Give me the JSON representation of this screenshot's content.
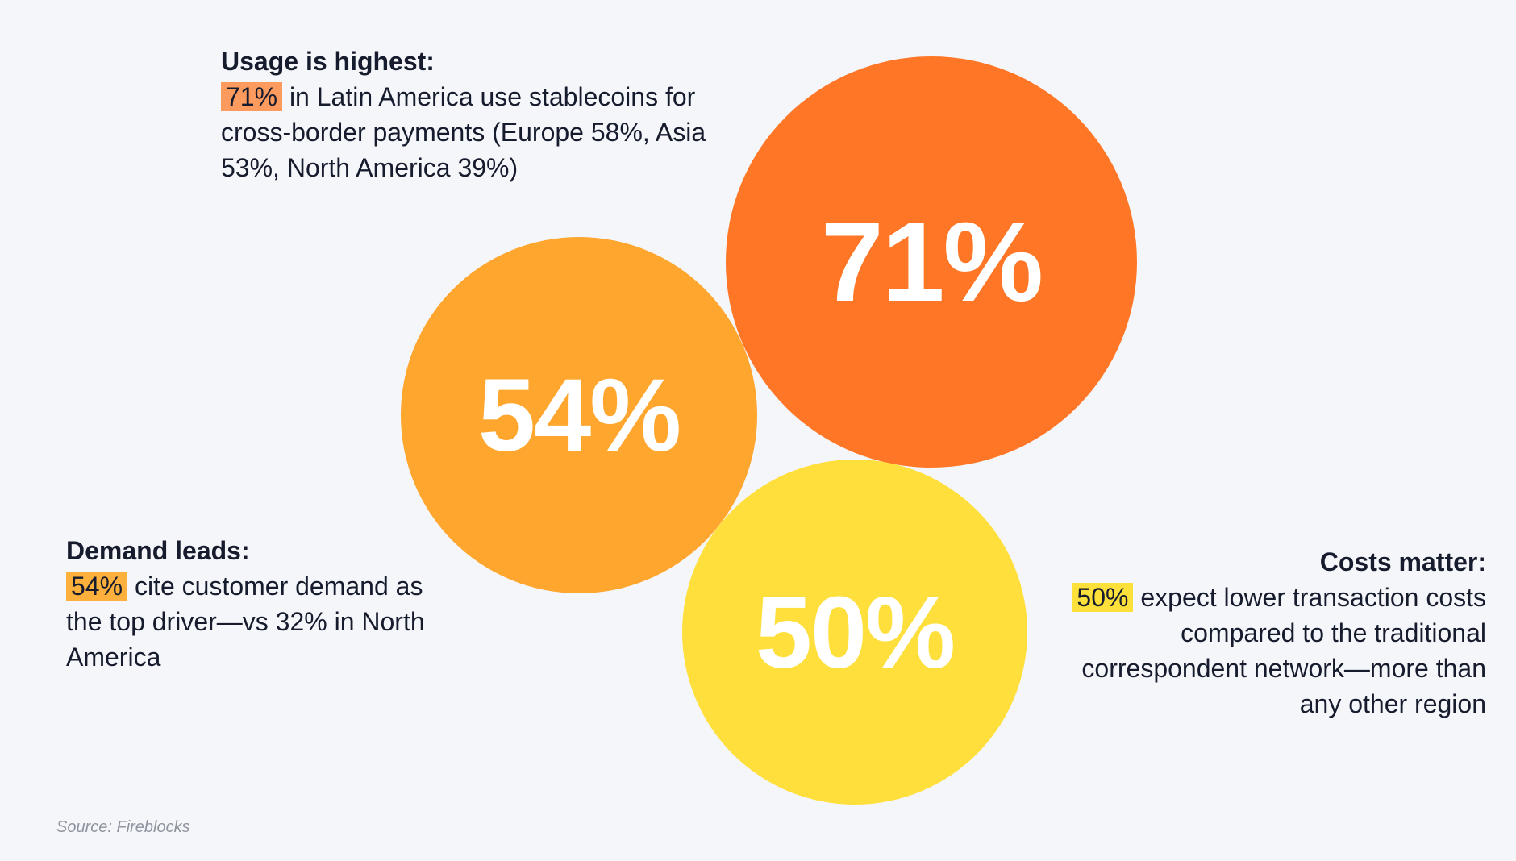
{
  "chart_data": {
    "type": "bubble",
    "bubbles": [
      {
        "label": "71%",
        "value": 71,
        "color": "#ff7626"
      },
      {
        "label": "54%",
        "value": 54,
        "color": "#fea62e"
      },
      {
        "label": "50%",
        "value": 50,
        "color": "#fedf3c"
      }
    ]
  },
  "callouts": {
    "top": {
      "heading": "Usage is highest:",
      "highlight": "71%",
      "text": " in Latin America use stablecoins for cross-border payments (Europe 58%, Asia 53%, North America 39%)",
      "highlight_color": "#fd9a5d"
    },
    "left": {
      "heading": "Demand leads:",
      "highlight": "54%",
      "text": " cite customer demand as the top driver—vs 32% in North America",
      "highlight_color": "#fdb13c"
    },
    "right": {
      "heading": "Costs matter:",
      "highlight": "50%",
      "text": " expect lower transaction costs compared to the traditional correspondent network—more than any other region",
      "highlight_color": "#fee03b"
    }
  },
  "source": "Source: Fireblocks"
}
